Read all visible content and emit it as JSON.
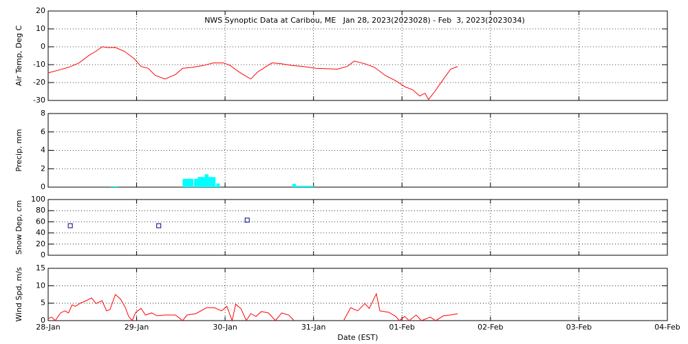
{
  "chart_data": [
    {
      "type": "line",
      "title": "NWS Synoptic Data at Caribou, ME   Jan 28, 2023(2023028) - Feb  3, 2023(2023034)",
      "ylabel": "Air Temp, Deg C",
      "color": "#ff0000",
      "grid": true,
      "xlim": [
        0,
        7
      ],
      "xticks": [
        0,
        1,
        2,
        3,
        4,
        5,
        6,
        7
      ],
      "ylim": [
        -30,
        20
      ],
      "yticks": [
        -30,
        -20,
        -10,
        0,
        10,
        20
      ],
      "x": [
        0,
        0.12,
        0.23,
        0.35,
        0.47,
        0.54,
        0.61,
        0.68,
        0.76,
        0.86,
        0.97,
        1.05,
        1.13,
        1.21,
        1.32,
        1.44,
        1.52,
        1.63,
        1.75,
        1.87,
        1.98,
        2.06,
        2.14,
        2.22,
        2.29,
        2.37,
        2.45,
        2.53,
        2.64,
        2.76,
        2.88,
        3.03,
        3.27,
        3.38,
        3.46,
        3.58,
        3.69,
        3.81,
        3.93,
        4.04,
        4.12,
        4.2,
        4.26,
        4.3,
        4.37,
        4.47,
        4.55,
        4.63
      ],
      "values": [
        -14.6,
        -13,
        -11.5,
        -9,
        -4.5,
        -2.5,
        0,
        -0.5,
        -0.4,
        -2.5,
        -6.5,
        -11,
        -12,
        -16,
        -18,
        -15.5,
        -12,
        -11.5,
        -10.5,
        -9,
        -9,
        -10.5,
        -13.5,
        -16,
        -18,
        -14,
        -11.5,
        -9,
        -9.5,
        -10.5,
        -11,
        -12,
        -12.5,
        -11,
        -8,
        -9.5,
        -11.5,
        -16,
        -19,
        -22.5,
        -24,
        -27.5,
        -26,
        -29.5,
        -25,
        -18,
        -12.5,
        -11
      ]
    },
    {
      "type": "bar",
      "ylabel": "Precip, mm",
      "color": "#00ffff",
      "grid": true,
      "xlim": [
        0,
        7
      ],
      "xticks": [
        0,
        1,
        2,
        3,
        4,
        5,
        6,
        7
      ],
      "ylim": [
        0,
        8
      ],
      "yticks": [
        0,
        2,
        4,
        6,
        8
      ],
      "x": [
        0.71,
        0.75,
        1.52,
        1.56,
        1.6,
        1.65,
        1.69,
        1.73,
        1.77,
        1.81,
        1.85,
        1.9,
        2.76,
        2.8,
        2.84,
        2.88,
        2.92,
        2.96
      ],
      "values": [
        0.1,
        0.1,
        0.9,
        0.9,
        0.9,
        0.9,
        1.1,
        1.1,
        1.4,
        1.1,
        1.1,
        0.4,
        0.35,
        0.15,
        0.15,
        0.15,
        0.15,
        0.15
      ]
    },
    {
      "type": "scatter",
      "ylabel": "Snow Dep, cm",
      "color": "#000080",
      "grid": true,
      "xlim": [
        0,
        7
      ],
      "xticks": [
        0,
        1,
        2,
        3,
        4,
        5,
        6,
        7
      ],
      "ylim": [
        0,
        100
      ],
      "yticks": [
        0,
        20,
        40,
        60,
        80,
        100
      ],
      "x": [
        0.25,
        1.25,
        2.25
      ],
      "values": [
        53,
        53,
        63
      ]
    },
    {
      "type": "line",
      "ylabel": "Wind Spd, m/s",
      "xlabel": "Date (EST)",
      "color": "#ff0000",
      "grid": true,
      "xlim": [
        0,
        7
      ],
      "xticks": [
        {
          "value": 0,
          "label": "28-Jan"
        },
        {
          "value": 1,
          "label": "29-Jan"
        },
        {
          "value": 2,
          "label": "30-Jan"
        },
        {
          "value": 3,
          "label": "31-Jan"
        },
        {
          "value": 4,
          "label": "01-Feb"
        },
        {
          "value": 5,
          "label": "02-Feb"
        },
        {
          "value": 6,
          "label": "03-Feb"
        },
        {
          "value": 7,
          "label": "04-Feb"
        }
      ],
      "ylim": [
        0,
        15
      ],
      "yticks": [
        0,
        5,
        10,
        15
      ],
      "x": [
        0,
        0.04,
        0.08,
        0.14,
        0.19,
        0.23,
        0.27,
        0.31,
        0.37,
        0.43,
        0.49,
        0.54,
        0.61,
        0.66,
        0.7,
        0.76,
        0.82,
        0.87,
        0.91,
        0.95,
        0.99,
        1.05,
        1.1,
        1.17,
        1.23,
        1.32,
        1.44,
        1.52,
        1.57,
        1.67,
        1.79,
        1.88,
        1.96,
        2.02,
        2.08,
        2.12,
        2.18,
        2.24,
        2.29,
        2.35,
        2.41,
        2.49,
        2.57,
        2.64,
        2.72,
        2.78,
        3.0,
        3.34,
        3.42,
        3.5,
        3.58,
        3.63,
        3.71,
        3.75,
        3.85,
        3.93,
        3.97,
        4.03,
        4.08,
        4.16,
        4.22,
        4.32,
        4.38,
        4.47,
        4.55,
        4.63
      ],
      "values": [
        0.6,
        1,
        0,
        2.2,
        2.8,
        2.2,
        4.5,
        4.1,
        5.1,
        5.7,
        6.5,
        4.9,
        5.7,
        2.8,
        3.2,
        7.5,
        6.1,
        3.9,
        1.2,
        0,
        2.4,
        3.5,
        1.6,
        2.2,
        1.4,
        1.6,
        1.6,
        0,
        1.6,
        2.0,
        3.7,
        3.7,
        2.8,
        4.1,
        0,
        4.7,
        3.4,
        0,
        2.0,
        1.2,
        2.6,
        2.2,
        0,
        2.2,
        1.6,
        0,
        null,
        0,
        3.7,
        2.8,
        4.9,
        3.5,
        7.7,
        2.8,
        2.4,
        1.2,
        0,
        1.2,
        0,
        1.6,
        0,
        1,
        0,
        1.4,
        1.6,
        2.0
      ]
    }
  ]
}
